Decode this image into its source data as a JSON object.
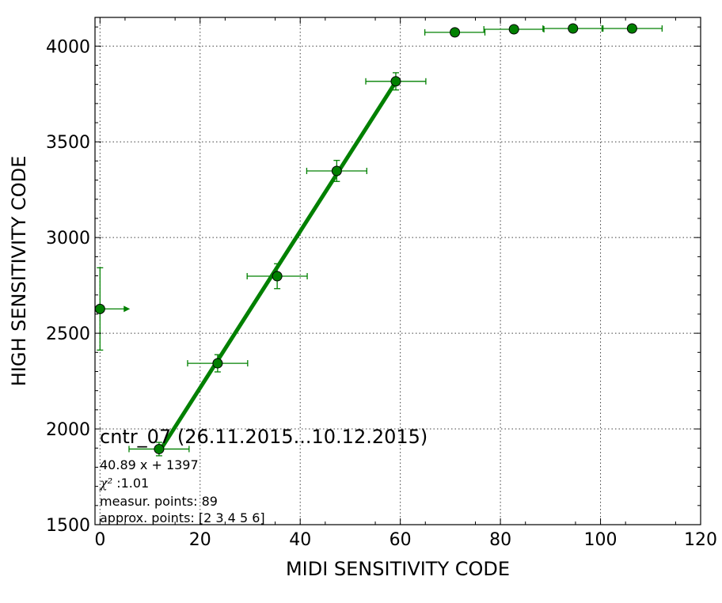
{
  "chart_data": {
    "type": "scatter",
    "xlabel": "MIDI SENSITIVITY CODE",
    "ylabel": "HIGH SENSITIVITY CODE",
    "xlim": [
      -1,
      120
    ],
    "ylim": [
      1500,
      4150
    ],
    "x_ticks": [
      0,
      20,
      40,
      60,
      80,
      100,
      120
    ],
    "y_ticks": [
      1500,
      2000,
      2500,
      3000,
      3500,
      4000
    ],
    "grid": true,
    "color": "#008000",
    "points": [
      {
        "x": 0,
        "y": 2627,
        "yerr": 215
      },
      {
        "x": 11.8,
        "y": 1895,
        "xerr": 6,
        "yerr": 35
      },
      {
        "x": 23.5,
        "y": 2343,
        "xerr": 6,
        "yerr": 45
      },
      {
        "x": 35.4,
        "y": 2798,
        "xerr": 6,
        "yerr": 65
      },
      {
        "x": 47.3,
        "y": 3348,
        "xerr": 6,
        "yerr": 55
      },
      {
        "x": 59.1,
        "y": 3816,
        "xerr": 6,
        "yerr": 45
      },
      {
        "x": 70.9,
        "y": 4072,
        "xerr": 6
      },
      {
        "x": 82.7,
        "y": 4088,
        "xerr": 6
      },
      {
        "x": 94.5,
        "y": 4092,
        "xerr": 6
      },
      {
        "x": 106.3,
        "y": 4092,
        "xerr": 6
      }
    ],
    "arrow": {
      "x_from": 0,
      "x_to": 6,
      "y": 2627
    },
    "fit": {
      "slope": 40.89,
      "intercept": 1397,
      "x_range": [
        11.8,
        59.1
      ]
    },
    "annotations": {
      "title": "cntr_07 (26.11.2015...10.12.2015)",
      "equation": "40.89 x + 1397",
      "chi2_symbol": "χ²",
      "chi2_value": " :1.01",
      "measur_points": "measur. points: 89",
      "approx_points": "approx. points: [2 3 4 5 6]"
    }
  }
}
